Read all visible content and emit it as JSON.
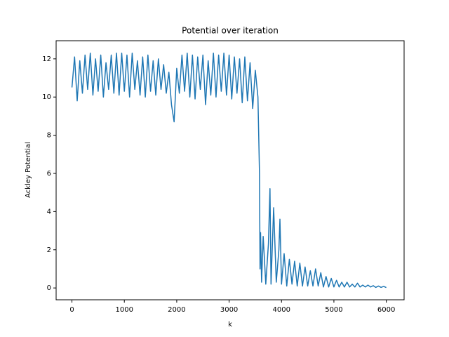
{
  "chart_data": {
    "type": "line",
    "title": "Potential over iteration",
    "x_label": "k",
    "y_label": "Ackley Potential",
    "x": [
      0,
      50,
      100,
      150,
      200,
      250,
      300,
      350,
      400,
      450,
      500,
      550,
      600,
      650,
      700,
      750,
      800,
      850,
      900,
      950,
      1000,
      1050,
      1100,
      1150,
      1200,
      1250,
      1300,
      1350,
      1400,
      1450,
      1500,
      1550,
      1600,
      1650,
      1700,
      1750,
      1800,
      1850,
      1900,
      1950,
      2000,
      2050,
      2100,
      2150,
      2200,
      2250,
      2300,
      2350,
      2400,
      2450,
      2500,
      2550,
      2600,
      2650,
      2700,
      2750,
      2800,
      2850,
      2900,
      2950,
      3000,
      3050,
      3100,
      3150,
      3200,
      3250,
      3300,
      3350,
      3400,
      3450,
      3500,
      3550,
      3580,
      3590,
      3600,
      3620,
      3650,
      3700,
      3750,
      3780,
      3800,
      3850,
      3900,
      3950,
      3970,
      4000,
      4050,
      4100,
      4150,
      4200,
      4250,
      4300,
      4350,
      4400,
      4450,
      4500,
      4550,
      4600,
      4650,
      4700,
      4750,
      4800,
      4850,
      4900,
      4950,
      5000,
      5050,
      5100,
      5150,
      5200,
      5250,
      5300,
      5350,
      5400,
      5450,
      5500,
      5550,
      5600,
      5650,
      5700,
      5750,
      5800,
      5850,
      5900,
      5950,
      6000
    ],
    "series": [
      {
        "name": "Ackley Potential",
        "color": "#1f77b4",
        "values": [
          10.5,
          12.1,
          9.8,
          11.9,
          10.2,
          12.2,
          10.4,
          12.3,
          10.1,
          12.0,
          10.3,
          12.2,
          10.0,
          11.8,
          10.4,
          12.2,
          10.2,
          12.3,
          10.1,
          12.3,
          10.3,
          12.2,
          10.0,
          12.3,
          10.4,
          11.9,
          10.1,
          12.1,
          10.0,
          12.2,
          10.3,
          11.9,
          10.1,
          12.0,
          10.4,
          11.7,
          10.2,
          11.3,
          9.6,
          8.7,
          11.5,
          10.2,
          12.2,
          10.3,
          12.3,
          10.0,
          12.2,
          9.9,
          12.1,
          10.4,
          12.2,
          9.6,
          11.9,
          10.1,
          12.3,
          10.0,
          12.2,
          10.3,
          12.3,
          10.1,
          12.2,
          9.9,
          12.1,
          10.2,
          12.0,
          9.7,
          12.1,
          9.8,
          11.8,
          9.4,
          11.4,
          10.0,
          6.0,
          1.0,
          2.9,
          0.3,
          2.7,
          0.2,
          2.3,
          5.2,
          0.2,
          4.2,
          0.3,
          2.0,
          3.6,
          0.2,
          1.8,
          0.1,
          1.5,
          0.2,
          1.4,
          0.1,
          1.3,
          0.1,
          1.1,
          0.1,
          0.9,
          0.1,
          1.0,
          0.1,
          0.8,
          0.05,
          0.6,
          0.05,
          0.5,
          0.05,
          0.4,
          0.05,
          0.3,
          0.05,
          0.3,
          0.05,
          0.2,
          0.05,
          0.25,
          0.05,
          0.15,
          0.05,
          0.15,
          0.05,
          0.12,
          0.03,
          0.1,
          0.03,
          0.08,
          0.02
        ]
      }
    ],
    "xlim": [
      -302,
      6340
    ],
    "ylim": [
      -0.62,
      12.95
    ],
    "xticks": [
      0,
      1000,
      2000,
      3000,
      4000,
      5000,
      6000
    ],
    "yticks": [
      0,
      2,
      4,
      6,
      8,
      10,
      12
    ]
  }
}
